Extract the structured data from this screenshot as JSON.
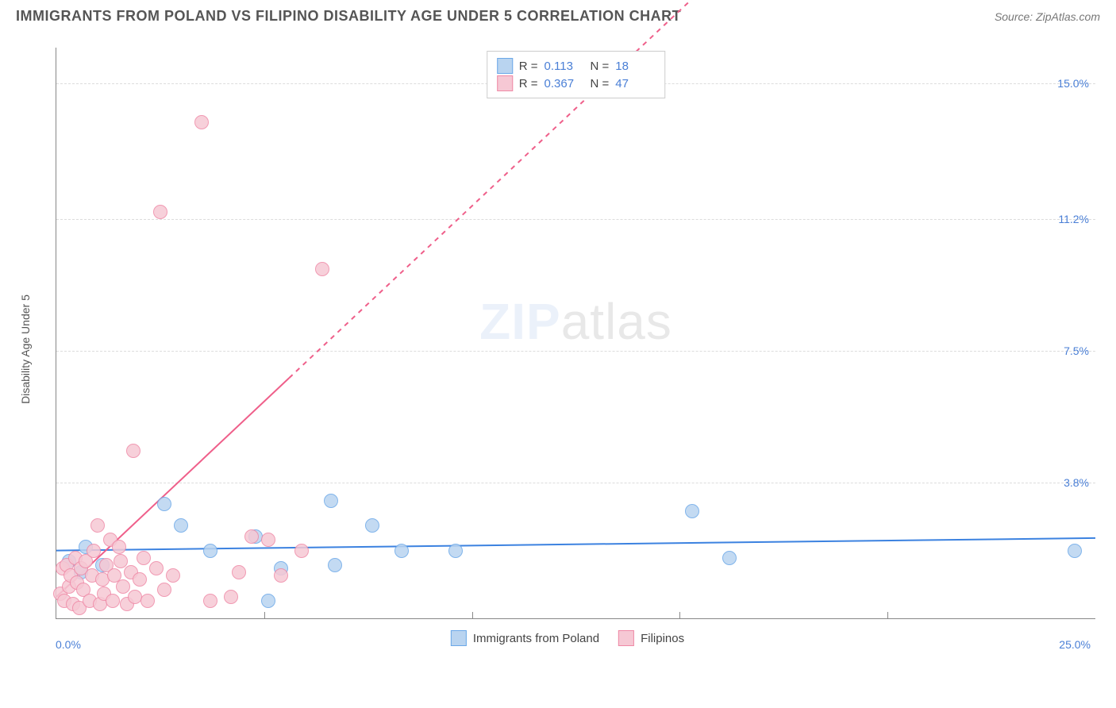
{
  "header": {
    "title": "IMMIGRANTS FROM POLAND VS FILIPINO DISABILITY AGE UNDER 5 CORRELATION CHART",
    "source": "Source: ZipAtlas.com"
  },
  "watermark": {
    "part1": "ZIP",
    "part2": "atlas"
  },
  "chart": {
    "type": "scatter",
    "y_axis_title": "Disability Age Under 5",
    "xlim": [
      0,
      25
    ],
    "ylim": [
      0,
      16
    ],
    "xtick_labels": [
      {
        "pos": 0,
        "label": "0.0%"
      },
      {
        "pos": 25,
        "label": "25.0%"
      }
    ],
    "xticks_minor": [
      5,
      10,
      15,
      20
    ],
    "ytick_labels": [
      {
        "pos": 3.8,
        "label": "3.8%"
      },
      {
        "pos": 7.5,
        "label": "7.5%"
      },
      {
        "pos": 11.2,
        "label": "11.2%"
      },
      {
        "pos": 15.0,
        "label": "15.0%"
      }
    ],
    "grid_color": "#dcdcdc",
    "background_color": "#ffffff",
    "series": [
      {
        "name": "Immigrants from Poland",
        "fill": "#b9d4f0",
        "stroke": "#6ba8e8",
        "marker_radius": 9,
        "R": "0.113",
        "N": "18",
        "trend": {
          "x1": 0,
          "y1": 1.9,
          "x2": 25,
          "y2": 2.25,
          "color": "#3c82e0",
          "width": 2,
          "dash": "none"
        },
        "points": [
          {
            "x": 0.3,
            "y": 1.6
          },
          {
            "x": 0.6,
            "y": 1.3
          },
          {
            "x": 0.7,
            "y": 2.0
          },
          {
            "x": 1.1,
            "y": 1.5
          },
          {
            "x": 2.6,
            "y": 3.2
          },
          {
            "x": 3.0,
            "y": 2.6
          },
          {
            "x": 3.7,
            "y": 1.9
          },
          {
            "x": 4.8,
            "y": 2.3
          },
          {
            "x": 5.1,
            "y": 0.5
          },
          {
            "x": 5.4,
            "y": 1.4
          },
          {
            "x": 6.6,
            "y": 3.3
          },
          {
            "x": 6.7,
            "y": 1.5
          },
          {
            "x": 7.6,
            "y": 2.6
          },
          {
            "x": 8.3,
            "y": 1.9
          },
          {
            "x": 9.6,
            "y": 1.9
          },
          {
            "x": 15.3,
            "y": 3.0
          },
          {
            "x": 16.2,
            "y": 1.7
          },
          {
            "x": 24.5,
            "y": 1.9
          }
        ]
      },
      {
        "name": "Filipinos",
        "fill": "#f6c8d4",
        "stroke": "#ef89a6",
        "marker_radius": 9,
        "R": "0.367",
        "N": "47",
        "trend": {
          "x1": 0,
          "y1": 0.6,
          "x2": 25,
          "y2": 28.0,
          "color": "#ef5f8a",
          "width": 2,
          "dash": "none",
          "dash_after_x": 5.6
        },
        "points": [
          {
            "x": 0.1,
            "y": 0.7
          },
          {
            "x": 0.15,
            "y": 1.4
          },
          {
            "x": 0.2,
            "y": 0.5
          },
          {
            "x": 0.25,
            "y": 1.5
          },
          {
            "x": 0.3,
            "y": 0.9
          },
          {
            "x": 0.35,
            "y": 1.2
          },
          {
            "x": 0.4,
            "y": 0.4
          },
          {
            "x": 0.45,
            "y": 1.7
          },
          {
            "x": 0.5,
            "y": 1.0
          },
          {
            "x": 0.55,
            "y": 0.3
          },
          {
            "x": 0.6,
            "y": 1.4
          },
          {
            "x": 0.65,
            "y": 0.8
          },
          {
            "x": 0.7,
            "y": 1.6
          },
          {
            "x": 0.8,
            "y": 0.5
          },
          {
            "x": 0.85,
            "y": 1.2
          },
          {
            "x": 0.9,
            "y": 1.9
          },
          {
            "x": 1.0,
            "y": 2.6
          },
          {
            "x": 1.05,
            "y": 0.4
          },
          {
            "x": 1.1,
            "y": 1.1
          },
          {
            "x": 1.15,
            "y": 0.7
          },
          {
            "x": 1.2,
            "y": 1.5
          },
          {
            "x": 1.3,
            "y": 2.2
          },
          {
            "x": 1.35,
            "y": 0.5
          },
          {
            "x": 1.4,
            "y": 1.2
          },
          {
            "x": 1.5,
            "y": 2.0
          },
          {
            "x": 1.55,
            "y": 1.6
          },
          {
            "x": 1.6,
            "y": 0.9
          },
          {
            "x": 1.7,
            "y": 0.4
          },
          {
            "x": 1.8,
            "y": 1.3
          },
          {
            "x": 1.85,
            "y": 4.7
          },
          {
            "x": 1.9,
            "y": 0.6
          },
          {
            "x": 2.0,
            "y": 1.1
          },
          {
            "x": 2.1,
            "y": 1.7
          },
          {
            "x": 2.2,
            "y": 0.5
          },
          {
            "x": 2.4,
            "y": 1.4
          },
          {
            "x": 2.5,
            "y": 11.4
          },
          {
            "x": 2.6,
            "y": 0.8
          },
          {
            "x": 2.8,
            "y": 1.2
          },
          {
            "x": 3.5,
            "y": 13.9
          },
          {
            "x": 3.7,
            "y": 0.5
          },
          {
            "x": 4.2,
            "y": 0.6
          },
          {
            "x": 4.4,
            "y": 1.3
          },
          {
            "x": 4.7,
            "y": 2.3
          },
          {
            "x": 5.1,
            "y": 2.2
          },
          {
            "x": 5.4,
            "y": 1.2
          },
          {
            "x": 5.9,
            "y": 1.9
          },
          {
            "x": 6.4,
            "y": 9.8
          }
        ]
      }
    ]
  },
  "legend_top": {
    "r_label": "R =",
    "n_label": "N ="
  },
  "legend_bottom": {}
}
